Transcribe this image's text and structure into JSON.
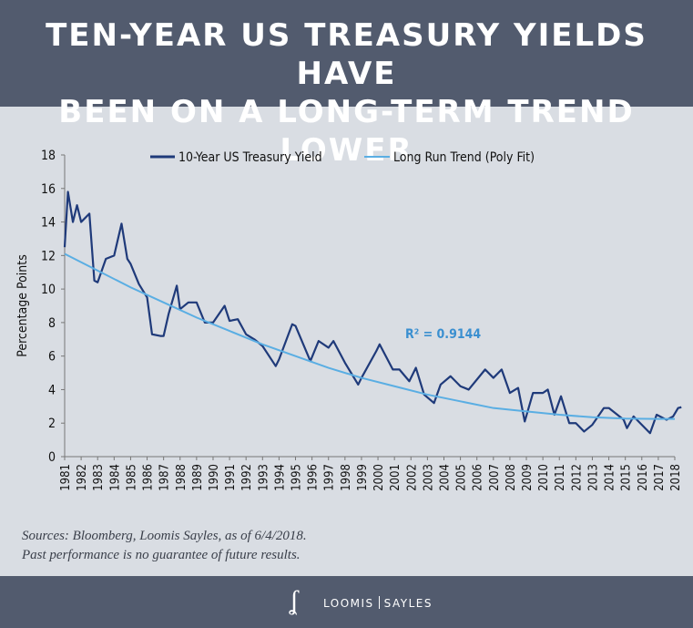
{
  "header": {
    "line1": "TEN-YEAR US TREASURY YIELDS HAVE",
    "line2": "BEEN ON A LONG-TERM TREND LOWER"
  },
  "chart_data": {
    "type": "line",
    "title": "",
    "ylabel": "Percentage Points",
    "xlabel": "",
    "ylim": [
      0,
      18
    ],
    "xlim": [
      1981,
      2018
    ],
    "yticks": [
      "0",
      "2",
      "4",
      "6",
      "8",
      "10",
      "12",
      "14",
      "16",
      "18"
    ],
    "xticks": [
      "1981",
      "1982",
      "1983",
      "1984",
      "1985",
      "1986",
      "1987",
      "1988",
      "1989",
      "1990",
      "1991",
      "1992",
      "1993",
      "1994",
      "1995",
      "1996",
      "1997",
      "1998",
      "1999",
      "2000",
      "2001",
      "2002",
      "2003",
      "2004",
      "2005",
      "2006",
      "2007",
      "2008",
      "2009",
      "2010",
      "2011",
      "2012",
      "2013",
      "2014",
      "2015",
      "2016",
      "2017",
      "2018"
    ],
    "grid": false,
    "legend_position": "top",
    "annotation": "R² = 0.9144",
    "series": [
      {
        "name": "10-Year US Treasury Yield",
        "color": "#1f3a7a",
        "x": [
          1981.0,
          1981.2,
          1981.5,
          1981.75,
          1982.0,
          1982.5,
          1982.8,
          1983.0,
          1983.5,
          1984.0,
          1984.45,
          1984.8,
          1985.0,
          1985.5,
          1986.0,
          1986.3,
          1986.8,
          1987.0,
          1987.3,
          1987.8,
          1988.0,
          1988.5,
          1989.0,
          1989.5,
          1990.0,
          1990.7,
          1991.0,
          1991.5,
          1992.0,
          1992.5,
          1993.0,
          1993.8,
          1994.0,
          1994.8,
          1995.0,
          1995.9,
          1996.4,
          1997.0,
          1997.3,
          1998.0,
          1998.8,
          1999.0,
          1999.9,
          2000.1,
          2000.9,
          2001.3,
          2001.9,
          2002.3,
          2002.8,
          2003.4,
          2003.8,
          2004.4,
          2005.0,
          2005.5,
          2006.5,
          2007.0,
          2007.5,
          2008.0,
          2008.5,
          2008.9,
          2009.4,
          2010.0,
          2010.3,
          2010.7,
          2011.1,
          2011.6,
          2012.0,
          2012.5,
          2013.0,
          2013.7,
          2014.0,
          2014.9,
          2015.1,
          2015.5,
          2016.5,
          2016.9,
          2017.5,
          2017.9,
          2018.2,
          2018.4
        ],
        "y": [
          12.5,
          15.8,
          14.0,
          15.0,
          14.0,
          14.5,
          10.5,
          10.4,
          11.8,
          12.0,
          13.9,
          11.8,
          11.5,
          10.3,
          9.5,
          7.3,
          7.2,
          7.2,
          8.5,
          10.2,
          8.8,
          9.2,
          9.2,
          8.0,
          8.0,
          9.0,
          8.1,
          8.2,
          7.3,
          7.0,
          6.6,
          5.4,
          5.8,
          7.9,
          7.8,
          5.7,
          6.9,
          6.5,
          6.9,
          5.6,
          4.3,
          4.7,
          6.3,
          6.7,
          5.2,
          5.2,
          4.5,
          5.3,
          3.7,
          3.2,
          4.3,
          4.8,
          4.2,
          4.0,
          5.2,
          4.7,
          5.2,
          3.8,
          4.1,
          2.1,
          3.8,
          3.8,
          4.0,
          2.5,
          3.6,
          2.0,
          2.0,
          1.5,
          1.9,
          2.9,
          2.9,
          2.2,
          1.7,
          2.4,
          1.4,
          2.5,
          2.2,
          2.4,
          2.9,
          2.95
        ]
      },
      {
        "name": "Long Run Trend (Poly Fit)",
        "color": "#5aaee3",
        "x": [
          1981,
          1983,
          1985,
          1987,
          1989,
          1991,
          1993,
          1995,
          1997,
          1999,
          2001,
          2003,
          2005,
          2007,
          2009,
          2011,
          2013,
          2015,
          2017,
          2018
        ],
        "y": [
          12.1,
          11.1,
          10.1,
          9.2,
          8.3,
          7.5,
          6.7,
          6.0,
          5.3,
          4.7,
          4.2,
          3.7,
          3.3,
          2.9,
          2.7,
          2.5,
          2.35,
          2.27,
          2.25,
          2.25
        ]
      }
    ]
  },
  "sources": {
    "line1": "Sources: Bloomberg, Loomis Sayles, as of 6/4/2018.",
    "line2": "Past performance is no guarantee of future results."
  },
  "footer": {
    "logo_mark": "LS",
    "brand_left": "LOOMIS",
    "brand_right": "SAYLES"
  }
}
